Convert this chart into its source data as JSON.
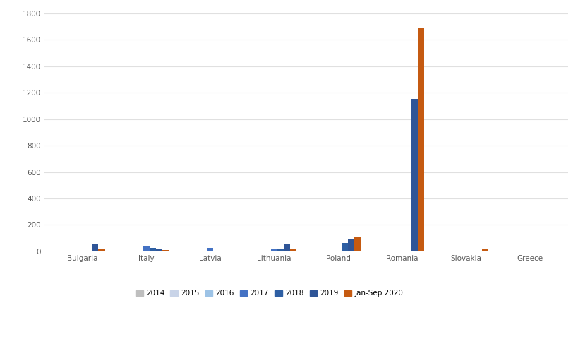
{
  "countries": [
    "Bulgaria",
    "Italy",
    "Latvia",
    "Lithuania",
    "Poland",
    "Romania",
    "Slovakia",
    "Greece"
  ],
  "series": [
    "2014",
    "2015",
    "2016",
    "2017",
    "2018",
    "2019",
    "Jan-Sep 2020"
  ],
  "bar_colors": [
    "#bfbfbf",
    "#c9d4e8",
    "#9dc3e6",
    "#4472c4",
    "#2e5fa3",
    "#2f5597",
    "#c55a11"
  ],
  "values": {
    "Bulgaria": [
      0,
      0,
      0,
      0,
      0,
      55,
      20
    ],
    "Italy": [
      0,
      0,
      0,
      40,
      23,
      20,
      10
    ],
    "Latvia": [
      0,
      0,
      0,
      28,
      3,
      6,
      0
    ],
    "Lithuania": [
      0,
      0,
      0,
      13,
      20,
      52,
      17
    ],
    "Poland": [
      2,
      0,
      0,
      0,
      65,
      92,
      105
    ],
    "Romania": [
      0,
      0,
      0,
      0,
      0,
      1155,
      1690
    ],
    "Slovakia": [
      0,
      0,
      0,
      0,
      0,
      5,
      17
    ],
    "Greece": [
      0,
      0,
      0,
      0,
      0,
      0,
      0
    ]
  },
  "ylim": [
    0,
    1800
  ],
  "yticks": [
    0,
    200,
    400,
    600,
    800,
    1000,
    1200,
    1400,
    1600,
    1800
  ],
  "background_color": "#ffffff",
  "grid_color": "#e0e0e0"
}
